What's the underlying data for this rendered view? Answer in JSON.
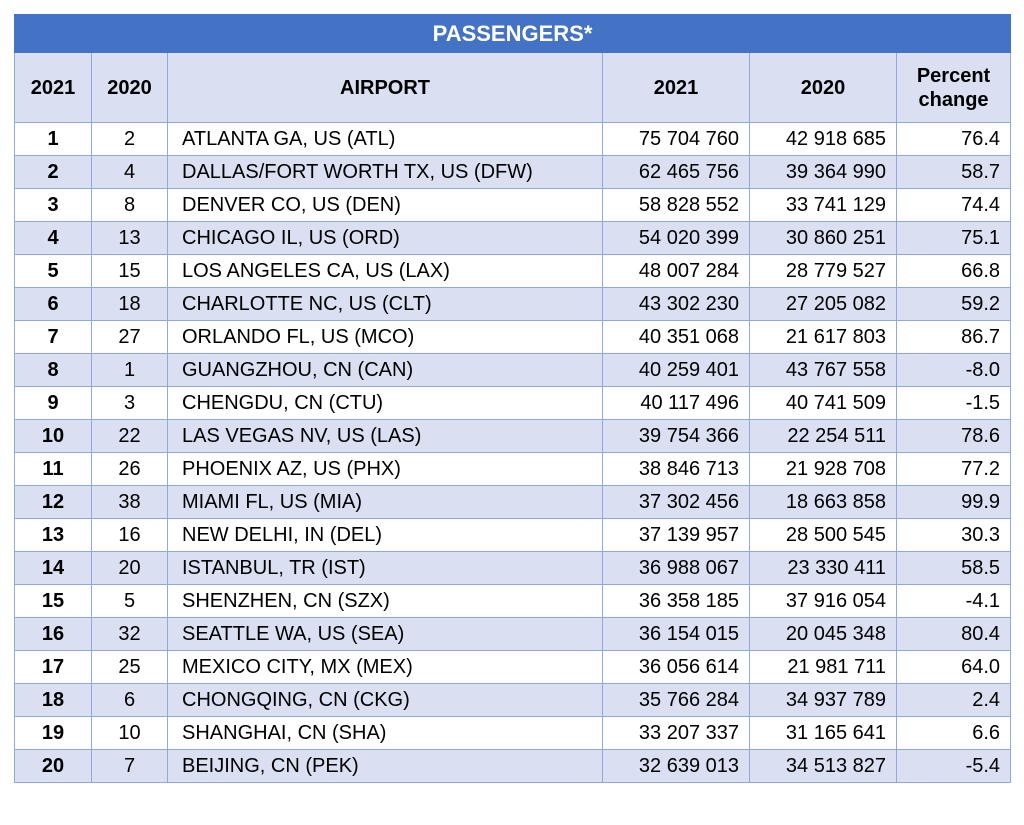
{
  "table": {
    "title": "PASSENGERS*",
    "headers": [
      "2021",
      "2020",
      "AIRPORT",
      "2021",
      "2020",
      "Percent change"
    ],
    "rows": [
      {
        "rank_2021": "1",
        "rank_2020": "2",
        "airport": "ATLANTA GA, US (ATL)",
        "pax_2021": "75 704 760",
        "pax_2020": "42 918 685",
        "pct": "76.4"
      },
      {
        "rank_2021": "2",
        "rank_2020": "4",
        "airport": "DALLAS/FORT WORTH TX, US (DFW)",
        "pax_2021": "62 465 756",
        "pax_2020": "39 364 990",
        "pct": "58.7"
      },
      {
        "rank_2021": "3",
        "rank_2020": "8",
        "airport": "DENVER CO, US (DEN)",
        "pax_2021": "58 828 552",
        "pax_2020": "33 741 129",
        "pct": "74.4"
      },
      {
        "rank_2021": "4",
        "rank_2020": "13",
        "airport": "CHICAGO IL, US (ORD)",
        "pax_2021": "54 020 399",
        "pax_2020": "30 860 251",
        "pct": "75.1"
      },
      {
        "rank_2021": "5",
        "rank_2020": "15",
        "airport": "LOS ANGELES CA, US (LAX)",
        "pax_2021": "48 007 284",
        "pax_2020": "28 779 527",
        "pct": "66.8"
      },
      {
        "rank_2021": "6",
        "rank_2020": "18",
        "airport": "CHARLOTTE NC, US (CLT)",
        "pax_2021": "43 302 230",
        "pax_2020": "27 205 082",
        "pct": "59.2"
      },
      {
        "rank_2021": "7",
        "rank_2020": "27",
        "airport": "ORLANDO FL, US (MCO)",
        "pax_2021": "40 351 068",
        "pax_2020": "21 617 803",
        "pct": "86.7"
      },
      {
        "rank_2021": "8",
        "rank_2020": "1",
        "airport": "GUANGZHOU, CN (CAN)",
        "pax_2021": "40 259 401",
        "pax_2020": "43 767 558",
        "pct": "-8.0"
      },
      {
        "rank_2021": "9",
        "rank_2020": "3",
        "airport": "CHENGDU, CN (CTU)",
        "pax_2021": "40 117 496",
        "pax_2020": "40 741 509",
        "pct": "-1.5"
      },
      {
        "rank_2021": "10",
        "rank_2020": "22",
        "airport": "LAS VEGAS NV, US (LAS)",
        "pax_2021": "39 754 366",
        "pax_2020": "22 254 511",
        "pct": "78.6"
      },
      {
        "rank_2021": "11",
        "rank_2020": "26",
        "airport": "PHOENIX AZ, US (PHX)",
        "pax_2021": "38 846 713",
        "pax_2020": "21 928 708",
        "pct": "77.2"
      },
      {
        "rank_2021": "12",
        "rank_2020": "38",
        "airport": "MIAMI FL, US (MIA)",
        "pax_2021": "37 302 456",
        "pax_2020": "18 663 858",
        "pct": "99.9"
      },
      {
        "rank_2021": "13",
        "rank_2020": "16",
        "airport": "NEW DELHI, IN (DEL)",
        "pax_2021": "37 139 957",
        "pax_2020": "28 500 545",
        "pct": "30.3"
      },
      {
        "rank_2021": "14",
        "rank_2020": "20",
        "airport": "ISTANBUL, TR (IST)",
        "pax_2021": "36 988 067",
        "pax_2020": "23 330 411",
        "pct": "58.5"
      },
      {
        "rank_2021": "15",
        "rank_2020": "5",
        "airport": "SHENZHEN, CN (SZX)",
        "pax_2021": "36 358 185",
        "pax_2020": "37 916 054",
        "pct": "-4.1"
      },
      {
        "rank_2021": "16",
        "rank_2020": "32",
        "airport": "SEATTLE WA, US (SEA)",
        "pax_2021": "36 154 015",
        "pax_2020": "20 045 348",
        "pct": "80.4"
      },
      {
        "rank_2021": "17",
        "rank_2020": "25",
        "airport": "MEXICO CITY, MX (MEX)",
        "pax_2021": "36 056 614",
        "pax_2020": "21 981 711",
        "pct": "64.0"
      },
      {
        "rank_2021": "18",
        "rank_2020": "6",
        "airport": "CHONGQING, CN (CKG)",
        "pax_2021": "35 766 284",
        "pax_2020": "34 937 789",
        "pct": "2.4"
      },
      {
        "rank_2021": "19",
        "rank_2020": "10",
        "airport": "SHANGHAI, CN (SHA)",
        "pax_2021": "33 207 337",
        "pax_2020": "31 165 641",
        "pct": "6.6"
      },
      {
        "rank_2021": "20",
        "rank_2020": "7",
        "airport": "BEIJING, CN (PEK)",
        "pax_2021": "32 639 013",
        "pax_2020": "34 513 827",
        "pct": "-5.4"
      }
    ]
  },
  "colors": {
    "title_bg": "#4472c4",
    "header_bg": "#dae0f2",
    "band_bg": "#dae0f2",
    "border": "#8ea9db"
  }
}
